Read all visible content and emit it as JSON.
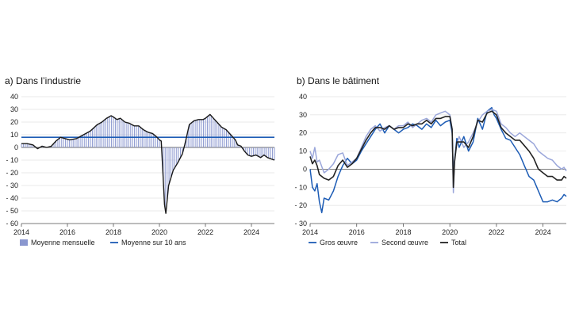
{
  "chart_data": [
    {
      "type": "bar",
      "title": "a) Dans l’industrie",
      "xlabel": "",
      "ylabel": "",
      "xlim": [
        2014,
        2025
      ],
      "ylim": [
        -60,
        40
      ],
      "yticks": [
        40,
        30,
        20,
        10,
        0,
        -10,
        -20,
        -30,
        -40,
        -50,
        -60
      ],
      "xticks": [
        2014,
        2016,
        2018,
        2020,
        2022,
        2024
      ],
      "grid": true,
      "legend_position": "bottom",
      "series": [
        {
          "name": "Moyenne mensuelle",
          "kind": "bar-line",
          "color": "#8a97cf",
          "line_color": "#1a1a1a",
          "points": [
            [
              2014.0,
              3
            ],
            [
              2014.25,
              3
            ],
            [
              2014.5,
              2
            ],
            [
              2014.7,
              -1
            ],
            [
              2014.9,
              1
            ],
            [
              2015.1,
              0
            ],
            [
              2015.3,
              1
            ],
            [
              2015.5,
              5
            ],
            [
              2015.7,
              8
            ],
            [
              2015.9,
              7
            ],
            [
              2016.1,
              6
            ],
            [
              2016.4,
              7
            ],
            [
              2016.7,
              10
            ],
            [
              2017.0,
              13
            ],
            [
              2017.3,
              18
            ],
            [
              2017.5,
              20
            ],
            [
              2017.7,
              23
            ],
            [
              2017.9,
              25
            ],
            [
              2018.0,
              24
            ],
            [
              2018.15,
              22
            ],
            [
              2018.3,
              23
            ],
            [
              2018.5,
              20
            ],
            [
              2018.7,
              19
            ],
            [
              2018.9,
              17
            ],
            [
              2019.1,
              17
            ],
            [
              2019.3,
              14
            ],
            [
              2019.5,
              12
            ],
            [
              2019.7,
              11
            ],
            [
              2019.9,
              8
            ],
            [
              2020.0,
              6
            ],
            [
              2020.08,
              5
            ],
            [
              2020.15,
              -20
            ],
            [
              2020.22,
              -45
            ],
            [
              2020.28,
              -52
            ],
            [
              2020.4,
              -30
            ],
            [
              2020.6,
              -18
            ],
            [
              2020.8,
              -12
            ],
            [
              2021.0,
              -5
            ],
            [
              2021.1,
              2
            ],
            [
              2021.2,
              10
            ],
            [
              2021.3,
              18
            ],
            [
              2021.5,
              21
            ],
            [
              2021.7,
              22
            ],
            [
              2021.9,
              22
            ],
            [
              2022.0,
              23
            ],
            [
              2022.2,
              26
            ],
            [
              2022.35,
              23
            ],
            [
              2022.5,
              20
            ],
            [
              2022.7,
              16
            ],
            [
              2022.9,
              14
            ],
            [
              2023.1,
              10
            ],
            [
              2023.2,
              8
            ],
            [
              2023.3,
              6
            ],
            [
              2023.4,
              2
            ],
            [
              2023.55,
              1
            ],
            [
              2023.7,
              -3
            ],
            [
              2023.85,
              -6
            ],
            [
              2024.0,
              -7
            ],
            [
              2024.2,
              -6
            ],
            [
              2024.4,
              -8
            ],
            [
              2024.55,
              -6
            ],
            [
              2024.7,
              -8
            ],
            [
              2024.85,
              -9
            ],
            [
              2025.0,
              -10
            ]
          ]
        },
        {
          "name": "Moyenne sur 10 ans",
          "kind": "hline",
          "value": 8,
          "color": "#1d5cb5"
        }
      ]
    },
    {
      "type": "line",
      "title": "b) Dans le bâtiment",
      "xlabel": "",
      "ylabel": "",
      "xlim": [
        2014,
        2025
      ],
      "ylim": [
        -30,
        40
      ],
      "yticks": [
        40,
        30,
        20,
        10,
        0,
        -10,
        -20,
        -30
      ],
      "xticks": [
        2014,
        2016,
        2018,
        2020,
        2022,
        2024
      ],
      "grid": true,
      "legend_position": "bottom",
      "series": [
        {
          "name": "Gros œuvre",
          "color": "#1d5cb5",
          "width": 1.5,
          "points": [
            [
              2014.0,
              0
            ],
            [
              2014.1,
              -10
            ],
            [
              2014.2,
              -12
            ],
            [
              2014.3,
              -8
            ],
            [
              2014.4,
              -18
            ],
            [
              2014.5,
              -24
            ],
            [
              2014.6,
              -16
            ],
            [
              2014.8,
              -17
            ],
            [
              2015.0,
              -12
            ],
            [
              2015.2,
              -4
            ],
            [
              2015.4,
              2
            ],
            [
              2015.6,
              6
            ],
            [
              2015.8,
              3
            ],
            [
              2016.0,
              5
            ],
            [
              2016.2,
              10
            ],
            [
              2016.4,
              14
            ],
            [
              2016.6,
              18
            ],
            [
              2016.8,
              22
            ],
            [
              2017.0,
              25
            ],
            [
              2017.2,
              20
            ],
            [
              2017.4,
              24
            ],
            [
              2017.6,
              22
            ],
            [
              2017.8,
              20
            ],
            [
              2018.0,
              22
            ],
            [
              2018.2,
              23
            ],
            [
              2018.4,
              25
            ],
            [
              2018.6,
              24
            ],
            [
              2018.8,
              22
            ],
            [
              2019.0,
              25
            ],
            [
              2019.2,
              23
            ],
            [
              2019.4,
              27
            ],
            [
              2019.6,
              24
            ],
            [
              2019.8,
              26
            ],
            [
              2020.0,
              27
            ],
            [
              2020.1,
              20
            ],
            [
              2020.15,
              -5
            ],
            [
              2020.2,
              5
            ],
            [
              2020.3,
              17
            ],
            [
              2020.4,
              12
            ],
            [
              2020.6,
              18
            ],
            [
              2020.8,
              10
            ],
            [
              2021.0,
              15
            ],
            [
              2021.2,
              28
            ],
            [
              2021.4,
              22
            ],
            [
              2021.6,
              32
            ],
            [
              2021.8,
              34
            ],
            [
              2021.9,
              30
            ],
            [
              2022.0,
              28
            ],
            [
              2022.2,
              22
            ],
            [
              2022.4,
              17
            ],
            [
              2022.6,
              16
            ],
            [
              2022.8,
              12
            ],
            [
              2023.0,
              8
            ],
            [
              2023.2,
              2
            ],
            [
              2023.4,
              -4
            ],
            [
              2023.6,
              -6
            ],
            [
              2023.8,
              -12
            ],
            [
              2024.0,
              -18
            ],
            [
              2024.2,
              -18
            ],
            [
              2024.4,
              -17
            ],
            [
              2024.6,
              -18
            ],
            [
              2024.8,
              -16
            ],
            [
              2024.9,
              -14
            ],
            [
              2025.0,
              -15
            ]
          ]
        },
        {
          "name": "Second œuvre",
          "color": "#9aa6da",
          "width": 1.5,
          "points": [
            [
              2014.0,
              10
            ],
            [
              2014.1,
              6
            ],
            [
              2014.2,
              12
            ],
            [
              2014.3,
              4
            ],
            [
              2014.4,
              5
            ],
            [
              2014.6,
              -2
            ],
            [
              2014.8,
              0
            ],
            [
              2015.0,
              3
            ],
            [
              2015.2,
              8
            ],
            [
              2015.4,
              9
            ],
            [
              2015.6,
              2
            ],
            [
              2015.8,
              4
            ],
            [
              2016.0,
              6
            ],
            [
              2016.2,
              12
            ],
            [
              2016.4,
              18
            ],
            [
              2016.6,
              22
            ],
            [
              2016.8,
              24
            ],
            [
              2017.0,
              21
            ],
            [
              2017.2,
              23
            ],
            [
              2017.4,
              24
            ],
            [
              2017.6,
              22
            ],
            [
              2017.8,
              24
            ],
            [
              2018.0,
              24
            ],
            [
              2018.2,
              26
            ],
            [
              2018.4,
              23
            ],
            [
              2018.6,
              25
            ],
            [
              2018.8,
              27
            ],
            [
              2019.0,
              28
            ],
            [
              2019.2,
              26
            ],
            [
              2019.4,
              30
            ],
            [
              2019.6,
              31
            ],
            [
              2019.8,
              32
            ],
            [
              2020.0,
              30
            ],
            [
              2020.1,
              22
            ],
            [
              2020.15,
              -13
            ],
            [
              2020.2,
              5
            ],
            [
              2020.3,
              14
            ],
            [
              2020.4,
              18
            ],
            [
              2020.6,
              12
            ],
            [
              2020.8,
              15
            ],
            [
              2021.0,
              20
            ],
            [
              2021.2,
              26
            ],
            [
              2021.4,
              30
            ],
            [
              2021.6,
              32
            ],
            [
              2021.8,
              33
            ],
            [
              2022.0,
              32
            ],
            [
              2022.2,
              25
            ],
            [
              2022.4,
              23
            ],
            [
              2022.6,
              20
            ],
            [
              2022.8,
              18
            ],
            [
              2023.0,
              20
            ],
            [
              2023.2,
              18
            ],
            [
              2023.4,
              16
            ],
            [
              2023.6,
              14
            ],
            [
              2023.8,
              10
            ],
            [
              2024.0,
              8
            ],
            [
              2024.2,
              6
            ],
            [
              2024.4,
              5
            ],
            [
              2024.6,
              2
            ],
            [
              2024.8,
              0
            ],
            [
              2024.9,
              1
            ],
            [
              2025.0,
              -1
            ]
          ]
        },
        {
          "name": "Total",
          "color": "#222222",
          "width": 1.6,
          "points": [
            [
              2014.0,
              7
            ],
            [
              2014.1,
              3
            ],
            [
              2014.2,
              5
            ],
            [
              2014.3,
              2
            ],
            [
              2014.4,
              -3
            ],
            [
              2014.6,
              -5
            ],
            [
              2014.8,
              -6
            ],
            [
              2015.0,
              -4
            ],
            [
              2015.2,
              2
            ],
            [
              2015.4,
              5
            ],
            [
              2015.6,
              1
            ],
            [
              2015.8,
              3
            ],
            [
              2016.0,
              6
            ],
            [
              2016.2,
              11
            ],
            [
              2016.4,
              16
            ],
            [
              2016.6,
              20
            ],
            [
              2016.8,
              23
            ],
            [
              2017.0,
              23
            ],
            [
              2017.2,
              22
            ],
            [
              2017.4,
              24
            ],
            [
              2017.6,
              22
            ],
            [
              2017.8,
              23
            ],
            [
              2018.0,
              23
            ],
            [
              2018.2,
              25
            ],
            [
              2018.4,
              24
            ],
            [
              2018.6,
              25
            ],
            [
              2018.8,
              25
            ],
            [
              2019.0,
              27
            ],
            [
              2019.2,
              25
            ],
            [
              2019.4,
              28
            ],
            [
              2019.6,
              28
            ],
            [
              2019.8,
              29
            ],
            [
              2020.0,
              29
            ],
            [
              2020.1,
              22
            ],
            [
              2020.15,
              -10
            ],
            [
              2020.2,
              4
            ],
            [
              2020.3,
              15
            ],
            [
              2020.4,
              15
            ],
            [
              2020.6,
              15
            ],
            [
              2020.8,
              12
            ],
            [
              2021.0,
              18
            ],
            [
              2021.2,
              27
            ],
            [
              2021.4,
              26
            ],
            [
              2021.6,
              31
            ],
            [
              2021.8,
              32
            ],
            [
              2022.0,
              30
            ],
            [
              2022.2,
              23
            ],
            [
              2022.4,
              20
            ],
            [
              2022.6,
              18
            ],
            [
              2022.8,
              16
            ],
            [
              2023.0,
              16
            ],
            [
              2023.2,
              13
            ],
            [
              2023.4,
              10
            ],
            [
              2023.6,
              6
            ],
            [
              2023.8,
              0
            ],
            [
              2024.0,
              -2
            ],
            [
              2024.2,
              -4
            ],
            [
              2024.4,
              -4
            ],
            [
              2024.6,
              -6
            ],
            [
              2024.8,
              -6
            ],
            [
              2024.9,
              -4
            ],
            [
              2025.0,
              -5
            ]
          ]
        }
      ]
    }
  ]
}
